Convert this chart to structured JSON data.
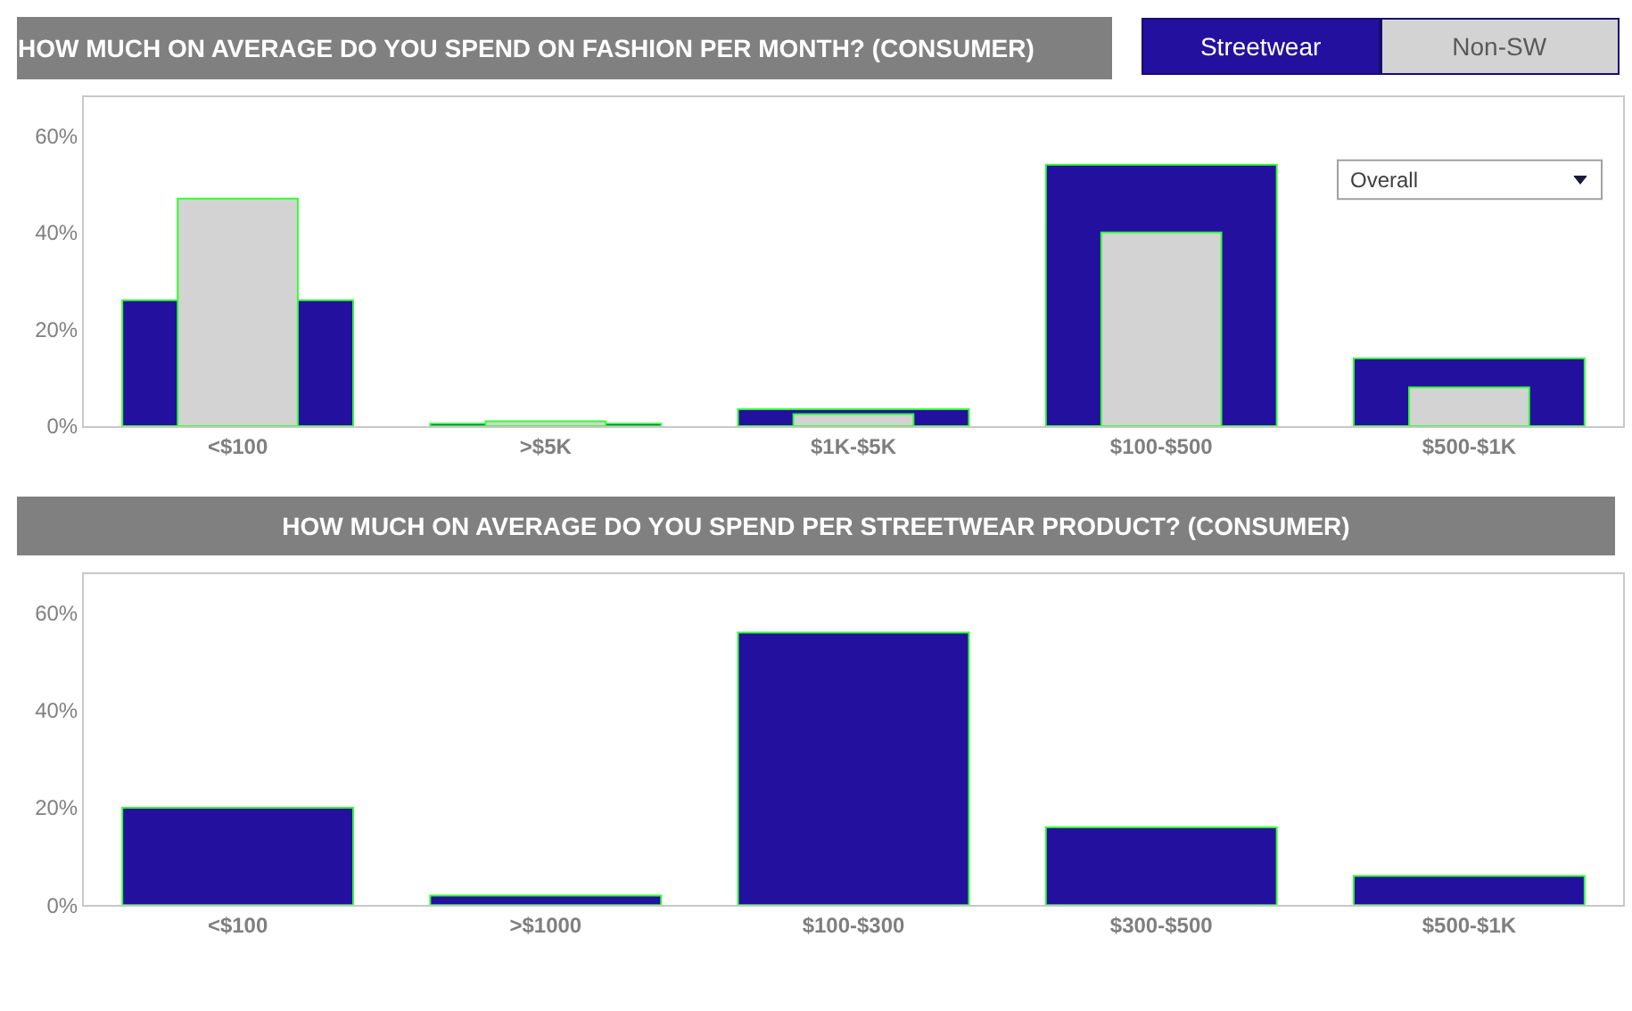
{
  "chart_data": [
    {
      "type": "bar",
      "title": "HOW MUCH ON AVERAGE DO YOU SPEND ON FASHION PER MONTH? (CONSUMER)",
      "categories": [
        "<$100",
        ">$5K",
        "$1K-$5K",
        "$100-$500",
        "$500-$1K"
      ],
      "series": [
        {
          "name": "Streetwear",
          "color": "#24109e",
          "values": [
            26,
            0.5,
            3.5,
            54,
            14
          ]
        },
        {
          "name": "Non-SW",
          "color": "#d3d3d3",
          "values": [
            47,
            1,
            2.5,
            40,
            8
          ]
        }
      ],
      "ylim": [
        0,
        68
      ],
      "yticks": [
        {
          "value": 0,
          "label": "0%"
        },
        {
          "value": 20,
          "label": "20%"
        },
        {
          "value": 40,
          "label": "40%"
        },
        {
          "value": 60,
          "label": "60%"
        }
      ],
      "legend": "top right",
      "annotations": [
        "Overall"
      ]
    },
    {
      "type": "bar",
      "title": "HOW MUCH ON AVERAGE DO YOU SPEND PER STREETWEAR PRODUCT? (CONSUMER)",
      "categories": [
        "<$100",
        ">$1000",
        "$100-$300",
        "$300-$500",
        "$500-$1K"
      ],
      "values": [
        20,
        2,
        56,
        16,
        6
      ],
      "color": "#24109e",
      "ylim": [
        0,
        68
      ],
      "yticks": [
        {
          "value": 0,
          "label": "0%"
        },
        {
          "value": 20,
          "label": "20%"
        },
        {
          "value": 40,
          "label": "40%"
        },
        {
          "value": 60,
          "label": "60%"
        }
      ]
    }
  ]
}
